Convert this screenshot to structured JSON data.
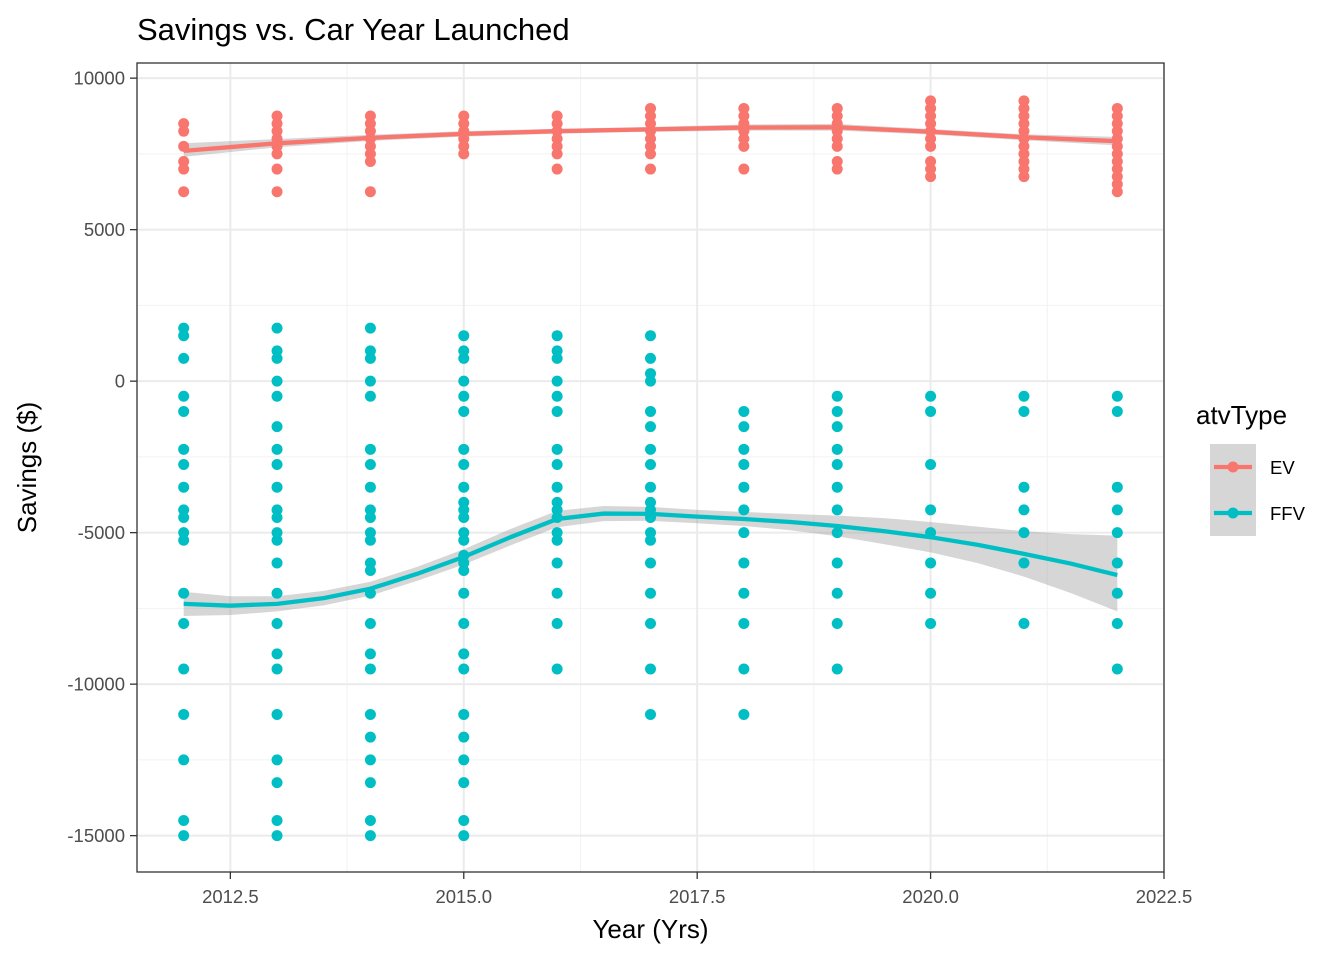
{
  "chart_data": {
    "type": "scatter",
    "title": "Savings vs. Car Year Launched",
    "xlabel": "Year (Yrs)",
    "ylabel": "Savings ($)",
    "xlim": [
      2011.5,
      2022.5
    ],
    "ylim": [
      -16200,
      10500
    ],
    "x_ticks": [
      2012.5,
      2015.0,
      2017.5,
      2020.0,
      2022.5
    ],
    "x_tick_labels": [
      "2012.5",
      "2015.0",
      "2017.5",
      "2020.0",
      "2022.5"
    ],
    "y_ticks": [
      10000,
      5000,
      0,
      -5000,
      -10000,
      -15000
    ],
    "y_tick_labels": [
      "10000",
      "5000",
      "0",
      "-5000",
      "-10000",
      "-15000"
    ],
    "grid": true,
    "smoother": "loess with confidence band",
    "legend": {
      "title": "atvType",
      "position": "right",
      "entries": [
        {
          "label": "EV",
          "color": "#F8766D"
        },
        {
          "label": "FFV",
          "color": "#00BFC4"
        }
      ]
    },
    "band_color": "#999999",
    "series": [
      {
        "name": "EV",
        "color": "#F8766D",
        "points": [
          {
            "x": 2012,
            "y": [
              8500,
              8250,
              7750,
              7250,
              7000,
              6250
            ]
          },
          {
            "x": 2013,
            "y": [
              8750,
              8500,
              8250,
              8000,
              7750,
              7500,
              7000,
              6250
            ]
          },
          {
            "x": 2014,
            "y": [
              8750,
              8500,
              8250,
              8000,
              7750,
              7500,
              7250,
              6250
            ]
          },
          {
            "x": 2015,
            "y": [
              8750,
              8500,
              8250,
              8000,
              7750,
              7500
            ]
          },
          {
            "x": 2016,
            "y": [
              8750,
              8500,
              8250,
              8000,
              7750,
              7500,
              7000
            ]
          },
          {
            "x": 2017,
            "y": [
              9000,
              8750,
              8500,
              8250,
              8000,
              7750,
              7500,
              7000
            ]
          },
          {
            "x": 2018,
            "y": [
              9000,
              8750,
              8500,
              8250,
              8000,
              7750,
              7000
            ]
          },
          {
            "x": 2019,
            "y": [
              9000,
              8750,
              8500,
              8250,
              8000,
              7750,
              7250,
              7000
            ]
          },
          {
            "x": 2020,
            "y": [
              9250,
              9000,
              8750,
              8500,
              8250,
              8000,
              7750,
              7250,
              7000,
              6750
            ]
          },
          {
            "x": 2021,
            "y": [
              9250,
              9000,
              8750,
              8500,
              8250,
              8000,
              7750,
              7500,
              7250,
              7000,
              6750
            ]
          },
          {
            "x": 2022,
            "y": [
              9000,
              8750,
              8500,
              8250,
              8000,
              7750,
              7500,
              7250,
              7000,
              6750,
              6500,
              6250
            ]
          }
        ],
        "smooth": [
          {
            "x": 2012,
            "y": 7600,
            "lo": 7400,
            "hi": 7850
          },
          {
            "x": 2013,
            "y": 7850,
            "lo": 7720,
            "hi": 7990
          },
          {
            "x": 2014,
            "y": 8030,
            "lo": 7930,
            "hi": 8130
          },
          {
            "x": 2015,
            "y": 8160,
            "lo": 8070,
            "hi": 8250
          },
          {
            "x": 2016,
            "y": 8250,
            "lo": 8170,
            "hi": 8330
          },
          {
            "x": 2017,
            "y": 8310,
            "lo": 8230,
            "hi": 8390
          },
          {
            "x": 2018,
            "y": 8370,
            "lo": 8270,
            "hi": 8470
          },
          {
            "x": 2019,
            "y": 8380,
            "lo": 8270,
            "hi": 8490
          },
          {
            "x": 2020,
            "y": 8230,
            "lo": 8140,
            "hi": 8320
          },
          {
            "x": 2021,
            "y": 8050,
            "lo": 7950,
            "hi": 8150
          },
          {
            "x": 2022,
            "y": 7920,
            "lo": 7780,
            "hi": 8060
          }
        ]
      },
      {
        "name": "FFV",
        "color": "#00BFC4",
        "points": [
          {
            "x": 2012,
            "y": [
              1750,
              1500,
              750,
              -500,
              -1000,
              -2250,
              -2750,
              -3500,
              -4250,
              -4500,
              -5000,
              -5250,
              -7000,
              -8000,
              -9500,
              -11000,
              -12500,
              -14500,
              -15000
            ]
          },
          {
            "x": 2013,
            "y": [
              1750,
              1000,
              750,
              0,
              -500,
              -1500,
              -2250,
              -2750,
              -3500,
              -4250,
              -4500,
              -5000,
              -5250,
              -6000,
              -7000,
              -8000,
              -9000,
              -9500,
              -11000,
              -12500,
              -13250,
              -14500,
              -15000
            ]
          },
          {
            "x": 2014,
            "y": [
              1750,
              1000,
              750,
              0,
              -500,
              -2250,
              -2750,
              -3500,
              -4250,
              -4500,
              -5000,
              -5250,
              -6000,
              -6250,
              -7000,
              -8000,
              -9000,
              -9500,
              -11000,
              -11750,
              -12500,
              -13250,
              -14500,
              -15000
            ]
          },
          {
            "x": 2015,
            "y": [
              1500,
              1000,
              750,
              0,
              -500,
              -1000,
              -2250,
              -2750,
              -3500,
              -4000,
              -4250,
              -4500,
              -5000,
              -5250,
              -5750,
              -6000,
              -6250,
              -7000,
              -8000,
              -9000,
              -9500,
              -11000,
              -11750,
              -12500,
              -13250,
              -14500,
              -15000
            ]
          },
          {
            "x": 2016,
            "y": [
              1500,
              1000,
              750,
              0,
              -500,
              -1000,
              -2250,
              -2750,
              -3500,
              -4000,
              -4250,
              -4500,
              -5000,
              -5250,
              -6000,
              -7000,
              -8000,
              -9500
            ]
          },
          {
            "x": 2017,
            "y": [
              1500,
              750,
              250,
              0,
              -1000,
              -1500,
              -2250,
              -2750,
              -3500,
              -4000,
              -4250,
              -4500,
              -5000,
              -5250,
              -6000,
              -7000,
              -8000,
              -9500,
              -11000
            ]
          },
          {
            "x": 2018,
            "y": [
              -1000,
              -1500,
              -2250,
              -2750,
              -3500,
              -4250,
              -5000,
              -6000,
              -7000,
              -8000,
              -9500,
              -11000
            ]
          },
          {
            "x": 2019,
            "y": [
              -500,
              -1000,
              -1500,
              -2250,
              -2750,
              -3500,
              -4250,
              -5000,
              -6000,
              -7000,
              -8000,
              -9500
            ]
          },
          {
            "x": 2020,
            "y": [
              -500,
              -1000,
              -2750,
              -4250,
              -5000,
              -6000,
              -7000,
              -8000
            ]
          },
          {
            "x": 2021,
            "y": [
              -500,
              -1000,
              -3500,
              -4250,
              -5000,
              -6000,
              -8000
            ]
          },
          {
            "x": 2022,
            "y": [
              -500,
              -1000,
              -3500,
              -4250,
              -5000,
              -6000,
              -7000,
              -8000,
              -9500
            ]
          }
        ],
        "smooth": [
          {
            "x": 2012,
            "y": -7350,
            "lo": -7750,
            "hi": -6950
          },
          {
            "x": 2012.5,
            "y": -7410,
            "lo": -7720,
            "hi": -7100
          },
          {
            "x": 2013,
            "y": -7350,
            "lo": -7600,
            "hi": -7100
          },
          {
            "x": 2013.5,
            "y": -7160,
            "lo": -7400,
            "hi": -6920
          },
          {
            "x": 2014,
            "y": -6850,
            "lo": -7080,
            "hi": -6620
          },
          {
            "x": 2014.5,
            "y": -6360,
            "lo": -6590,
            "hi": -6130
          },
          {
            "x": 2015,
            "y": -5800,
            "lo": -6050,
            "hi": -5550
          },
          {
            "x": 2015.5,
            "y": -5150,
            "lo": -5420,
            "hi": -4880
          },
          {
            "x": 2016,
            "y": -4550,
            "lo": -4820,
            "hi": -4280
          },
          {
            "x": 2016.5,
            "y": -4370,
            "lo": -4620,
            "hi": -4120
          },
          {
            "x": 2017,
            "y": -4380,
            "lo": -4610,
            "hi": -4150
          },
          {
            "x": 2017.5,
            "y": -4470,
            "lo": -4690,
            "hi": -4250
          },
          {
            "x": 2018,
            "y": -4550,
            "lo": -4780,
            "hi": -4320
          },
          {
            "x": 2018.5,
            "y": -4650,
            "lo": -4920,
            "hi": -4380
          },
          {
            "x": 2019,
            "y": -4780,
            "lo": -5120,
            "hi": -4440
          },
          {
            "x": 2019.5,
            "y": -4950,
            "lo": -5380,
            "hi": -4520
          },
          {
            "x": 2020,
            "y": -5150,
            "lo": -5650,
            "hi": -4650
          },
          {
            "x": 2020.5,
            "y": -5400,
            "lo": -6000,
            "hi": -4800
          },
          {
            "x": 2021,
            "y": -5700,
            "lo": -6450,
            "hi": -4950
          },
          {
            "x": 2021.5,
            "y": -6020,
            "lo": -6990,
            "hi": -5050
          },
          {
            "x": 2022,
            "y": -6400,
            "lo": -7600,
            "hi": -5100
          }
        ]
      }
    ]
  }
}
